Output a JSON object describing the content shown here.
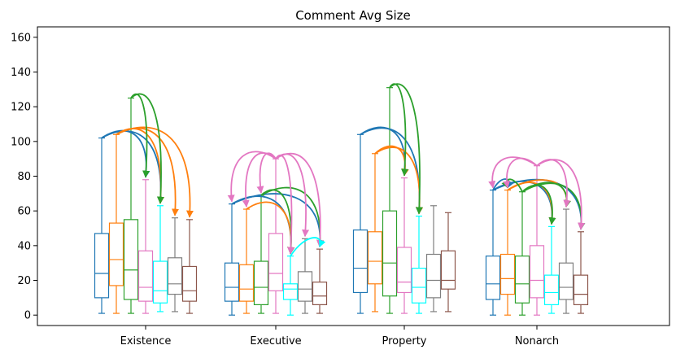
{
  "chart_data": {
    "type": "box",
    "title": "Comment Avg Size",
    "xlabel": "",
    "ylabel": "",
    "ylim": [
      -6,
      166
    ],
    "yticks": [
      0,
      20,
      40,
      60,
      80,
      100,
      120,
      140,
      160
    ],
    "categories": [
      "Existence",
      "Executive",
      "Property",
      "Nonarch"
    ],
    "series_colors": [
      "#1f77b4",
      "#ff7f0e",
      "#2ca02c",
      "#e377c2",
      "#00ffff",
      "#7f7f7f",
      "#8c564b"
    ],
    "boxes": [
      [
        {
          "min": 1,
          "q1": 10,
          "median": 24,
          "q3": 47,
          "max": 102
        },
        {
          "min": 1,
          "q1": 17,
          "median": 32,
          "q3": 53,
          "max": 104
        },
        {
          "min": 1,
          "q1": 9,
          "median": 26,
          "q3": 55,
          "max": 125
        },
        {
          "min": 1,
          "q1": 8,
          "median": 16,
          "q3": 37,
          "max": 78
        },
        {
          "min": 2,
          "q1": 7,
          "median": 14,
          "q3": 31,
          "max": 63
        },
        {
          "min": 2,
          "q1": 12,
          "median": 18,
          "q3": 33,
          "max": 56
        },
        {
          "min": 1,
          "q1": 8,
          "median": 14,
          "q3": 28,
          "max": 55
        }
      ],
      [
        {
          "min": 0,
          "q1": 8,
          "median": 16,
          "q3": 30,
          "max": 64
        },
        {
          "min": 1,
          "q1": 8,
          "median": 15,
          "q3": 29,
          "max": 61
        },
        {
          "min": 1,
          "q1": 6,
          "median": 16,
          "q3": 31,
          "max": 69
        },
        {
          "min": 1,
          "q1": 14,
          "median": 24,
          "q3": 47,
          "max": 90
        },
        {
          "min": 0,
          "q1": 9,
          "median": 15,
          "q3": 18,
          "max": 34
        },
        {
          "min": 1,
          "q1": 8,
          "median": 15,
          "q3": 25,
          "max": 44
        },
        {
          "min": 1,
          "q1": 6,
          "median": 11,
          "q3": 19,
          "max": 38
        }
      ],
      [
        {
          "min": 1,
          "q1": 13,
          "median": 27,
          "q3": 49,
          "max": 104
        },
        {
          "min": 2,
          "q1": 18,
          "median": 31,
          "q3": 48,
          "max": 93
        },
        {
          "min": 1,
          "q1": 11,
          "median": 30,
          "q3": 60,
          "max": 131
        },
        {
          "min": 1,
          "q1": 13,
          "median": 19,
          "q3": 39,
          "max": 79
        },
        {
          "min": 1,
          "q1": 7,
          "median": 16,
          "q3": 27,
          "max": 57
        },
        {
          "min": 2,
          "q1": 10,
          "median": 20,
          "q3": 35,
          "max": 63
        },
        {
          "min": 2,
          "q1": 15,
          "median": 20,
          "q3": 37,
          "max": 59
        }
      ],
      [
        {
          "min": 0,
          "q1": 9,
          "median": 18,
          "q3": 34,
          "max": 72
        },
        {
          "min": 0,
          "q1": 12,
          "median": 21,
          "q3": 35,
          "max": 72
        },
        {
          "min": 0,
          "q1": 7,
          "median": 18,
          "q3": 34,
          "max": 71
        },
        {
          "min": 0,
          "q1": 10,
          "median": 20,
          "q3": 40,
          "max": 86
        },
        {
          "min": 1,
          "q1": 6,
          "median": 13,
          "q3": 23,
          "max": 51
        },
        {
          "min": 1,
          "q1": 9,
          "median": 16,
          "q3": 30,
          "max": 61
        },
        {
          "min": 1,
          "q1": 6,
          "median": 12,
          "q3": 23,
          "max": 48
        }
      ]
    ],
    "arrows": [
      {
        "group": 0,
        "from": 0,
        "to": 3,
        "color": "#1f77b4"
      },
      {
        "group": 0,
        "from": 0,
        "to": 4,
        "color": "#1f77b4"
      },
      {
        "group": 0,
        "from": 1,
        "to": 4,
        "color": "#ff7f0e"
      },
      {
        "group": 0,
        "from": 1,
        "to": 5,
        "color": "#ff7f0e"
      },
      {
        "group": 0,
        "from": 1,
        "to": 6,
        "color": "#ff7f0e"
      },
      {
        "group": 0,
        "from": 2,
        "to": 3,
        "color": "#2ca02c"
      },
      {
        "group": 0,
        "from": 2,
        "to": 4,
        "color": "#2ca02c"
      },
      {
        "group": 1,
        "from": 0,
        "to": 4,
        "color": "#1f77b4"
      },
      {
        "group": 1,
        "from": 0,
        "to": 6,
        "color": "#1f77b4"
      },
      {
        "group": 1,
        "from": 1,
        "to": 4,
        "color": "#ff7f0e"
      },
      {
        "group": 1,
        "from": 2,
        "to": 4,
        "color": "#2ca02c"
      },
      {
        "group": 1,
        "from": 2,
        "to": 6,
        "color": "#2ca02c"
      },
      {
        "group": 1,
        "from": 3,
        "to": 0,
        "color": "#e377c2"
      },
      {
        "group": 1,
        "from": 3,
        "to": 1,
        "color": "#e377c2"
      },
      {
        "group": 1,
        "from": 3,
        "to": 2,
        "color": "#e377c2"
      },
      {
        "group": 1,
        "from": 3,
        "to": 4,
        "color": "#e377c2"
      },
      {
        "group": 1,
        "from": 3,
        "to": 5,
        "color": "#e377c2"
      },
      {
        "group": 1,
        "from": 3,
        "to": 6,
        "color": "#e377c2"
      },
      {
        "group": 1,
        "from": 4,
        "to": 6,
        "color": "#00ffff"
      },
      {
        "group": 2,
        "from": 0,
        "to": 3,
        "color": "#1f77b4"
      },
      {
        "group": 2,
        "from": 0,
        "to": 4,
        "color": "#1f77b4"
      },
      {
        "group": 2,
        "from": 1,
        "to": 3,
        "color": "#ff7f0e"
      },
      {
        "group": 2,
        "from": 1,
        "to": 4,
        "color": "#ff7f0e"
      },
      {
        "group": 2,
        "from": 2,
        "to": 3,
        "color": "#2ca02c"
      },
      {
        "group": 2,
        "from": 2,
        "to": 4,
        "color": "#2ca02c"
      },
      {
        "group": 3,
        "from": 0,
        "to": 1,
        "color": "#1f77b4"
      },
      {
        "group": 3,
        "from": 0,
        "to": 4,
        "color": "#1f77b4"
      },
      {
        "group": 3,
        "from": 0,
        "to": 6,
        "color": "#1f77b4"
      },
      {
        "group": 3,
        "from": 1,
        "to": 4,
        "color": "#ff7f0e"
      },
      {
        "group": 3,
        "from": 1,
        "to": 5,
        "color": "#ff7f0e"
      },
      {
        "group": 3,
        "from": 2,
        "to": 1,
        "color": "#2ca02c"
      },
      {
        "group": 3,
        "from": 2,
        "to": 4,
        "color": "#2ca02c"
      },
      {
        "group": 3,
        "from": 2,
        "to": 5,
        "color": "#2ca02c"
      },
      {
        "group": 3,
        "from": 2,
        "to": 6,
        "color": "#2ca02c"
      },
      {
        "group": 3,
        "from": 3,
        "to": 0,
        "color": "#e377c2"
      },
      {
        "group": 3,
        "from": 3,
        "to": 1,
        "color": "#e377c2"
      },
      {
        "group": 3,
        "from": 3,
        "to": 5,
        "color": "#e377c2"
      },
      {
        "group": 3,
        "from": 3,
        "to": 6,
        "color": "#e377c2"
      }
    ],
    "grid": false,
    "legend": "none"
  }
}
